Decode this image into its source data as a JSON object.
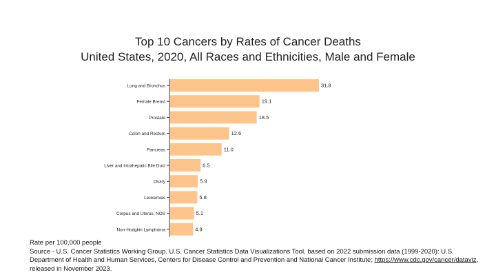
{
  "title_line1": "Top 10 Cancers by Rates of Cancer Deaths",
  "title_line2": "United States, 2020, All Races and Ethnicities, Male and Female",
  "footer": {
    "rate_note": "Rate per 100,000 people",
    "source_text": "Source - U.S. Cancer Statistics Working Group. U.S. Cancer Statistics Data Visualizations Tool, based on 2022 submission data (1999-2020): U.S. Department of Health and Human Services, Centers for Disease Control and Prevention and National Cancer Institute; ",
    "source_link": "https://www.cdc.gov/cancer/dataviz",
    "source_tail": ", released in November 2023."
  },
  "chart_data": {
    "type": "bar",
    "orientation": "horizontal",
    "categories": [
      "Lung and Bronchus",
      "Female Breast",
      "Prostate",
      "Colon and Rectum",
      "Pancreas",
      "Liver and Intrahepatic Bile Duct",
      "Ovary",
      "Leukemias",
      "Corpus and Uterus, NOS",
      "Non-Hodgkin Lymphoma"
    ],
    "values": [
      31.8,
      19.1,
      18.5,
      12.6,
      11.0,
      6.5,
      5.9,
      5.8,
      5.1,
      4.9
    ],
    "value_labels": [
      "31.8",
      "19.1",
      "18.5",
      "12.6",
      "11.0",
      "6.5",
      "5.9",
      "5.8",
      "5.1",
      "4.9"
    ],
    "bar_color": "#fdc58a",
    "xlim": [
      0,
      31.8
    ],
    "grid": false,
    "legend": "none"
  }
}
